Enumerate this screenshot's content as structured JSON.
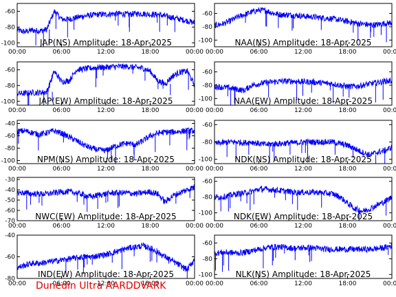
{
  "footer": {
    "credit": "Dunedin Ultra AARDDVARK"
  },
  "colors": {
    "trace": "#0000ff",
    "axis": "#000000",
    "footer": "#e00000",
    "background": "#ffffff"
  },
  "chart_data": [
    {
      "type": "line",
      "title": "JAP(NS) Amplitude: 18-Apr-2025",
      "ylim": [
        -105,
        -50
      ],
      "yticks": [
        -60,
        -80,
        -100
      ],
      "xticks": [
        "00:00",
        "06:00",
        "12:00",
        "18:00",
        "00:00"
      ],
      "xlim": [
        0,
        24
      ],
      "x": [
        0,
        1,
        2,
        3,
        4,
        5,
        6,
        7,
        8,
        9,
        10,
        11,
        12,
        13,
        14,
        15,
        16,
        17,
        18,
        19,
        20,
        21,
        22,
        23,
        24
      ],
      "series": [
        {
          "values": [
            -84,
            -86,
            -84,
            -85,
            -83,
            -60,
            -70,
            -70,
            -68,
            -66,
            -65,
            -64,
            -64,
            -63,
            -63,
            -64,
            -63,
            -63,
            -64,
            -64,
            -66,
            -68,
            -70,
            -72,
            -75
          ]
        }
      ]
    },
    {
      "type": "line",
      "title": "NAA(NS) Amplitude: 18-Apr-2025",
      "ylim": [
        -110,
        -45
      ],
      "yticks": [
        -60,
        -80,
        -100
      ],
      "xticks": [
        "00:00",
        "06:00",
        "12:00",
        "18:00",
        "00:00"
      ],
      "xlim": [
        0,
        24
      ],
      "x": [
        0,
        1,
        2,
        3,
        4,
        5,
        6,
        7,
        8,
        9,
        10,
        11,
        12,
        13,
        14,
        15,
        16,
        17,
        18,
        19,
        20,
        21,
        22,
        23,
        24
      ],
      "series": [
        {
          "values": [
            -78,
            -76,
            -72,
            -66,
            -62,
            -58,
            -55,
            -56,
            -60,
            -62,
            -62,
            -63,
            -64,
            -65,
            -66,
            -67,
            -68,
            -70,
            -72,
            -74,
            -76,
            -77,
            -77,
            -75,
            -74
          ]
        }
      ]
    },
    {
      "type": "line",
      "title": "JAP(EW) Amplitude: 18-Apr-2025",
      "ylim": [
        -105,
        -50
      ],
      "yticks": [
        -60,
        -80,
        -100
      ],
      "xticks": [
        "00:00",
        "06:00",
        "12:00",
        "18:00",
        "00:00"
      ],
      "xlim": [
        0,
        24
      ],
      "x": [
        0,
        1,
        2,
        3,
        4,
        5,
        6,
        7,
        8,
        9,
        10,
        11,
        12,
        13,
        14,
        15,
        16,
        17,
        18,
        19,
        20,
        21,
        22,
        23,
        24
      ],
      "series": [
        {
          "values": [
            -90,
            -90,
            -89,
            -89,
            -88,
            -62,
            -75,
            -74,
            -60,
            -59,
            -58,
            -57,
            -57,
            -56,
            -56,
            -56,
            -57,
            -58,
            -62,
            -74,
            -78,
            -68,
            -63,
            -62,
            -80
          ]
        }
      ]
    },
    {
      "type": "line",
      "title": "NAA(EW) Amplitude: 18-Apr-2025",
      "ylim": [
        -110,
        -45
      ],
      "yticks": [
        -60,
        -80,
        -100
      ],
      "xticks": [
        "00:00",
        "06:00",
        "12:00",
        "18:00",
        "00:00"
      ],
      "xlim": [
        0,
        24
      ],
      "x": [
        0,
        1,
        2,
        3,
        4,
        5,
        6,
        7,
        8,
        9,
        10,
        11,
        12,
        13,
        14,
        15,
        16,
        17,
        18,
        19,
        20,
        21,
        22,
        23,
        24
      ],
      "series": [
        {
          "values": [
            -82,
            -83,
            -84,
            -86,
            -88,
            -80,
            -78,
            -76,
            -75,
            -74,
            -74,
            -74,
            -75,
            -75,
            -76,
            -77,
            -78,
            -80,
            -82,
            -82,
            -80,
            -78,
            -76,
            -74,
            -73
          ]
        }
      ]
    },
    {
      "type": "line",
      "title": "NPM(NS) Amplitude: 18-Apr-2025",
      "ylim": [
        -105,
        -35
      ],
      "yticks": [
        -40,
        -60,
        -80,
        -100
      ],
      "xticks": [
        "00:00",
        "06:00",
        "12:00",
        "18:00",
        "00:00"
      ],
      "xlim": [
        0,
        24
      ],
      "x": [
        0,
        1,
        2,
        3,
        4,
        5,
        6,
        7,
        8,
        9,
        10,
        11,
        12,
        13,
        14,
        15,
        16,
        17,
        18,
        19,
        20,
        21,
        22,
        23,
        24
      ],
      "series": [
        {
          "values": [
            -53,
            -52,
            -55,
            -58,
            -55,
            -52,
            -56,
            -62,
            -68,
            -75,
            -80,
            -83,
            -84,
            -78,
            -74,
            -72,
            -75,
            -68,
            -60,
            -56,
            -54,
            -54,
            -53,
            -52,
            -52
          ]
        }
      ]
    },
    {
      "type": "line",
      "title": "NDK(NS) Amplitude: 18-Apr-2025",
      "ylim": [
        -105,
        -55
      ],
      "yticks": [
        -60,
        -80,
        -100
      ],
      "xticks": [
        "00:00",
        "06:00",
        "12:00",
        "18:00",
        "00:00"
      ],
      "xlim": [
        0,
        24
      ],
      "x": [
        0,
        1,
        2,
        3,
        4,
        5,
        6,
        7,
        8,
        9,
        10,
        11,
        12,
        13,
        14,
        15,
        16,
        17,
        18,
        19,
        20,
        21,
        22,
        23,
        24
      ],
      "series": [
        {
          "values": [
            -82,
            -81,
            -80,
            -80,
            -81,
            -80,
            -82,
            -83,
            -82,
            -82,
            -81,
            -81,
            -80,
            -80,
            -80,
            -80,
            -80,
            -82,
            -84,
            -88,
            -92,
            -95,
            -92,
            -90,
            -86
          ]
        }
      ]
    },
    {
      "type": "line",
      "title": "NWC(EW) Amplitude: 18-Apr-2025",
      "ylim": [
        -70,
        -28
      ],
      "yticks": [
        -30,
        -40,
        -50,
        -60,
        -70
      ],
      "xticks": [
        "00:00",
        "06:00",
        "12:00",
        "18:00",
        "00:00"
      ],
      "xlim": [
        0,
        24
      ],
      "x": [
        0,
        1,
        2,
        3,
        4,
        5,
        6,
        7,
        8,
        9,
        10,
        11,
        12,
        13,
        14,
        15,
        16,
        17,
        18,
        19,
        20,
        21,
        22,
        23,
        24
      ],
      "series": [
        {
          "values": [
            -43,
            -43,
            -44,
            -44,
            -44,
            -43,
            -42,
            -42,
            -43,
            -45,
            -47,
            -45,
            -44,
            -43,
            -43,
            -43,
            -44,
            -43,
            -42,
            -44,
            -52,
            -46,
            -43,
            -40,
            -37
          ]
        }
      ]
    },
    {
      "type": "line",
      "title": "NDK(EW) Amplitude: 18-Apr-2025",
      "ylim": [
        -110,
        -55
      ],
      "yticks": [
        -60,
        -80,
        -100
      ],
      "xticks": [
        "00:00",
        "06:00",
        "12:00",
        "18:00",
        "00:00"
      ],
      "xlim": [
        0,
        24
      ],
      "x": [
        0,
        1,
        2,
        3,
        4,
        5,
        6,
        7,
        8,
        9,
        10,
        11,
        12,
        13,
        14,
        15,
        16,
        17,
        18,
        19,
        20,
        21,
        22,
        23,
        24
      ],
      "series": [
        {
          "values": [
            -80,
            -80,
            -78,
            -76,
            -75,
            -73,
            -70,
            -70,
            -71,
            -72,
            -73,
            -74,
            -74,
            -74,
            -74,
            -75,
            -76,
            -80,
            -88,
            -95,
            -98,
            -95,
            -90,
            -86,
            -80
          ]
        }
      ]
    },
    {
      "type": "line",
      "title": "IND(EW) Amplitude: 18-Apr-2025",
      "ylim": [
        -80,
        -40
      ],
      "yticks": [
        -40,
        -60,
        -80
      ],
      "xticks": [
        "00:00",
        "06:00",
        "12:00",
        "18:00",
        "00:00"
      ],
      "xlim": [
        0,
        24
      ],
      "x": [
        0,
        1,
        2,
        3,
        4,
        5,
        6,
        7,
        8,
        9,
        10,
        11,
        12,
        13,
        14,
        15,
        16,
        17,
        18,
        19,
        20,
        21,
        22,
        23,
        24
      ],
      "series": [
        {
          "values": [
            -70,
            -68,
            -66,
            -66,
            -65,
            -64,
            -63,
            -62,
            -61,
            -60,
            -60,
            -59,
            -58,
            -56,
            -54,
            -52,
            -51,
            -50,
            -52,
            -56,
            -60,
            -64,
            -68,
            -72,
            -62
          ]
        }
      ]
    },
    {
      "type": "line",
      "title": "NLK(NS) Amplitude: 18-Apr-2025",
      "ylim": [
        -105,
        -50
      ],
      "yticks": [
        -60,
        -80,
        -100
      ],
      "xticks": [
        "00:00",
        "06:00",
        "12:00",
        "18:00",
        "00:00"
      ],
      "xlim": [
        0,
        24
      ],
      "x": [
        0,
        1,
        2,
        3,
        4,
        5,
        6,
        7,
        8,
        9,
        10,
        11,
        12,
        13,
        14,
        15,
        16,
        17,
        18,
        19,
        20,
        21,
        22,
        23,
        24
      ],
      "series": [
        {
          "values": [
            -73,
            -72,
            -72,
            -73,
            -72,
            -70,
            -68,
            -66,
            -65,
            -65,
            -66,
            -67,
            -66,
            -66,
            -67,
            -68,
            -68,
            -68,
            -68,
            -68,
            -68,
            -68,
            -67,
            -66,
            -63
          ]
        }
      ]
    }
  ]
}
